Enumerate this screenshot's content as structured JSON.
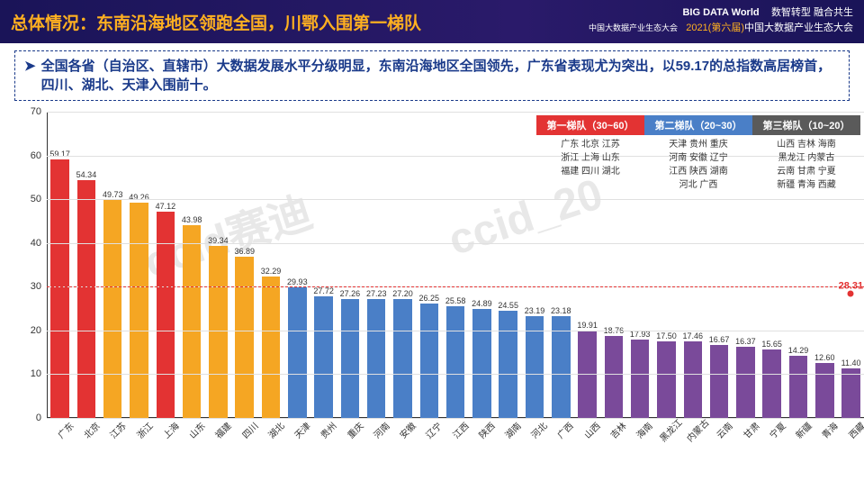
{
  "header": {
    "title": "总体情况：东南沿海地区领跑全国，川鄂入围第一梯队",
    "logo": "BIG DATA World",
    "logo_sub": "中国大数据产业生态大会",
    "line1": "数智转型  融合共生",
    "line2a": "2021(第六届)",
    "line2b": "中国大数据产业生态大会"
  },
  "desc": "全国各省（自治区、直辖市）大数据发展水平分级明显，东南沿海地区全国领先，广东省表现尤为突出，以59.17的总指数高居榜首，四川、湖北、天津入围前十。",
  "chart": {
    "ylim": [
      0,
      70
    ],
    "ytick_step": 10,
    "grid_color": "#e0e0e0",
    "reference_line": 30,
    "reference_color": "#e33333",
    "final_point": {
      "value": 28.31,
      "color": "#e33333"
    },
    "tiers": [
      {
        "name": "第一梯队（30~60）",
        "color": "#e33333",
        "members": "广东 北京 江苏\n浙江 上海 山东\n福建 四川 湖北"
      },
      {
        "name": "第二梯队（20~30）",
        "color": "#4a7fc7",
        "members": "天津 贵州 重庆\n河南 安徽 辽宁\n江西 陕西 湖南\n河北 广西"
      },
      {
        "name": "第三梯队（10~20）",
        "color": "#5a5a5a",
        "members": "山西 吉林 海南\n黑龙江 内蒙古\n云南 甘肃 宁夏\n新疆 青海 西藏"
      }
    ],
    "bars": [
      {
        "label": "广东",
        "value": 59.17,
        "color": "#e33333"
      },
      {
        "label": "北京",
        "value": 54.34,
        "color": "#e33333"
      },
      {
        "label": "江苏",
        "value": 49.73,
        "color": "#f5a623"
      },
      {
        "label": "浙江",
        "value": 49.26,
        "color": "#f5a623"
      },
      {
        "label": "上海",
        "value": 47.12,
        "color": "#e33333"
      },
      {
        "label": "山东",
        "value": 43.98,
        "color": "#f5a623"
      },
      {
        "label": "福建",
        "value": 39.34,
        "color": "#f5a623"
      },
      {
        "label": "四川",
        "value": 36.89,
        "color": "#f5a623"
      },
      {
        "label": "湖北",
        "value": 32.29,
        "color": "#f5a623"
      },
      {
        "label": "天津",
        "value": 29.93,
        "color": "#4a7fc7"
      },
      {
        "label": "贵州",
        "value": 27.72,
        "color": "#4a7fc7"
      },
      {
        "label": "重庆",
        "value": 27.26,
        "color": "#4a7fc7"
      },
      {
        "label": "河南",
        "value": 27.23,
        "color": "#4a7fc7"
      },
      {
        "label": "安徽",
        "value": 27.2,
        "color": "#4a7fc7"
      },
      {
        "label": "辽宁",
        "value": 26.25,
        "color": "#4a7fc7"
      },
      {
        "label": "江西",
        "value": 25.58,
        "color": "#4a7fc7"
      },
      {
        "label": "陕西",
        "value": 24.89,
        "color": "#4a7fc7"
      },
      {
        "label": "湖南",
        "value": 24.55,
        "color": "#4a7fc7"
      },
      {
        "label": "河北",
        "value": 23.19,
        "color": "#4a7fc7"
      },
      {
        "label": "广西",
        "value": 23.18,
        "color": "#4a7fc7"
      },
      {
        "label": "山西",
        "value": 19.91,
        "color": "#7a4a9a"
      },
      {
        "label": "吉林",
        "value": 18.76,
        "color": "#7a4a9a"
      },
      {
        "label": "海南",
        "value": 17.93,
        "color": "#7a4a9a"
      },
      {
        "label": "黑龙江",
        "value": 17.5,
        "color": "#7a4a9a"
      },
      {
        "label": "内蒙古",
        "value": 17.46,
        "color": "#7a4a9a"
      },
      {
        "label": "云南",
        "value": 16.67,
        "color": "#7a4a9a"
      },
      {
        "label": "甘肃",
        "value": 16.37,
        "color": "#7a4a9a"
      },
      {
        "label": "宁夏",
        "value": 15.65,
        "color": "#7a4a9a"
      },
      {
        "label": "新疆",
        "value": 14.29,
        "color": "#7a4a9a"
      },
      {
        "label": "青海",
        "value": 12.6,
        "color": "#7a4a9a"
      },
      {
        "label": "西藏",
        "value": 11.4,
        "color": "#7a4a9a"
      }
    ]
  },
  "watermarks": [
    "ccid赛迪",
    "ccid_20"
  ]
}
